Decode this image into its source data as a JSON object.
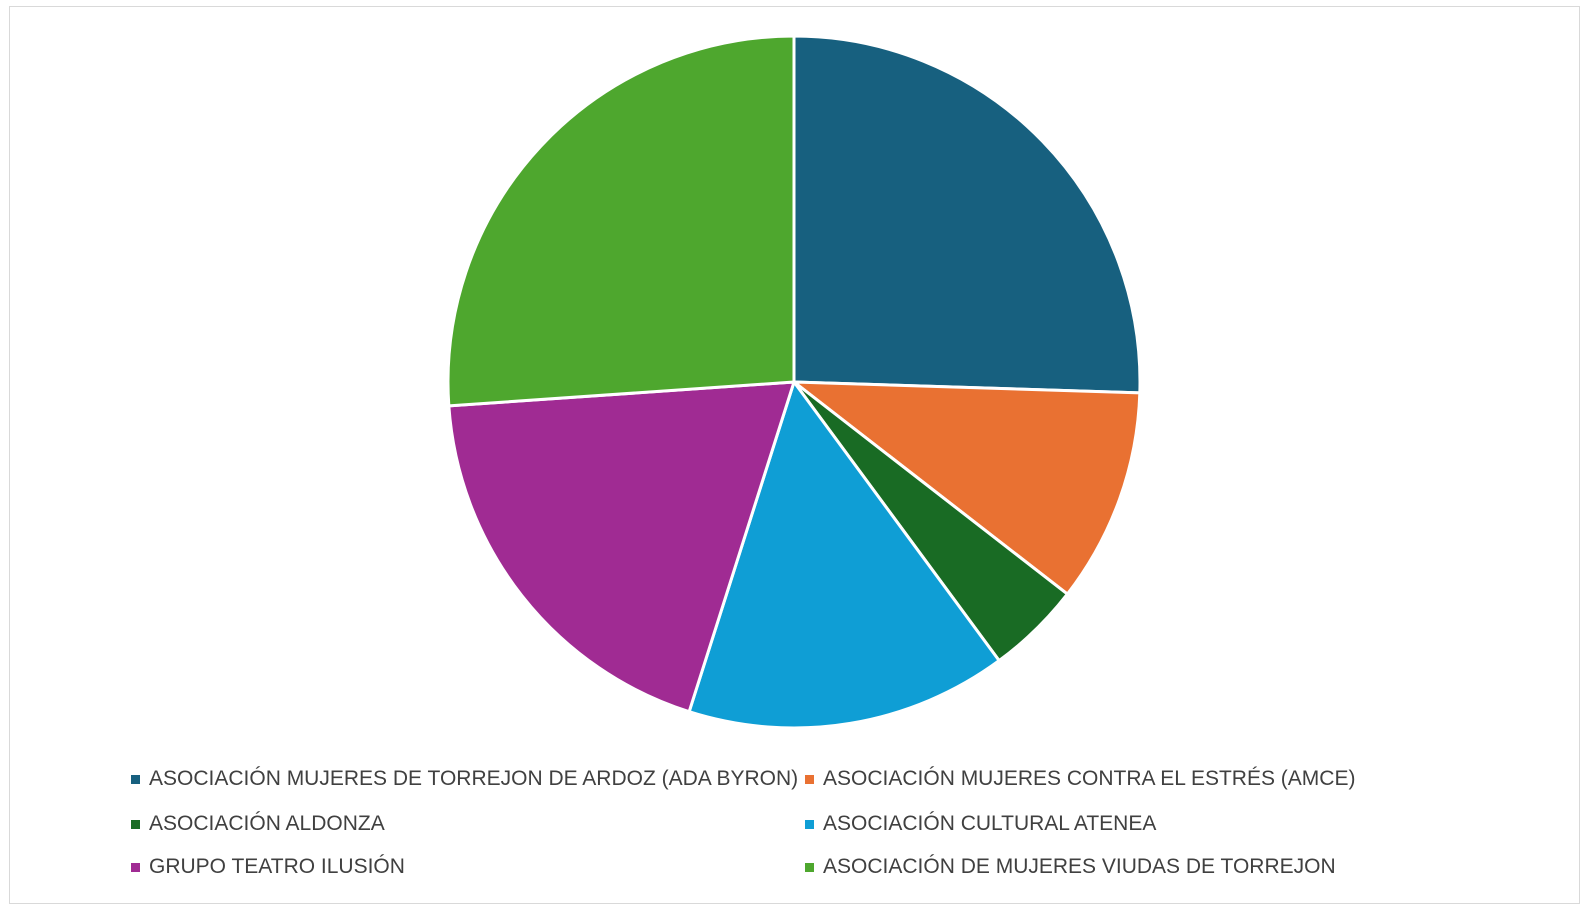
{
  "chart_data": {
    "type": "pie",
    "title": "",
    "legend_position": "bottom",
    "series": [
      {
        "values": [
          {
            "label": "ASOCIACIÓN MUJERES DE TORREJON DE ARDOZ (ADA BYRON)",
            "value": 25.5,
            "color": "#17607f"
          },
          {
            "label": "ASOCIACIÓN MUJERES CONTRA EL ESTRÉS (AMCE)",
            "value": 10.0,
            "color": "#e97132"
          },
          {
            "label": "ASOCIACIÓN ALDONZA",
            "value": 4.4,
            "color": "#196b24"
          },
          {
            "label": "ASOCIACIÓN CULTURAL ATENEA",
            "value": 15.0,
            "color": "#0f9ed5"
          },
          {
            "label": "GRUPO TEATRO ILUSIÓN",
            "value": 19.0,
            "color": "#a02b93"
          },
          {
            "label": "ASOCIACIÓN DE MUJERES VIUDAS DE TORREJON",
            "value": 26.1,
            "color": "#4ea72e"
          }
        ]
      }
    ]
  }
}
